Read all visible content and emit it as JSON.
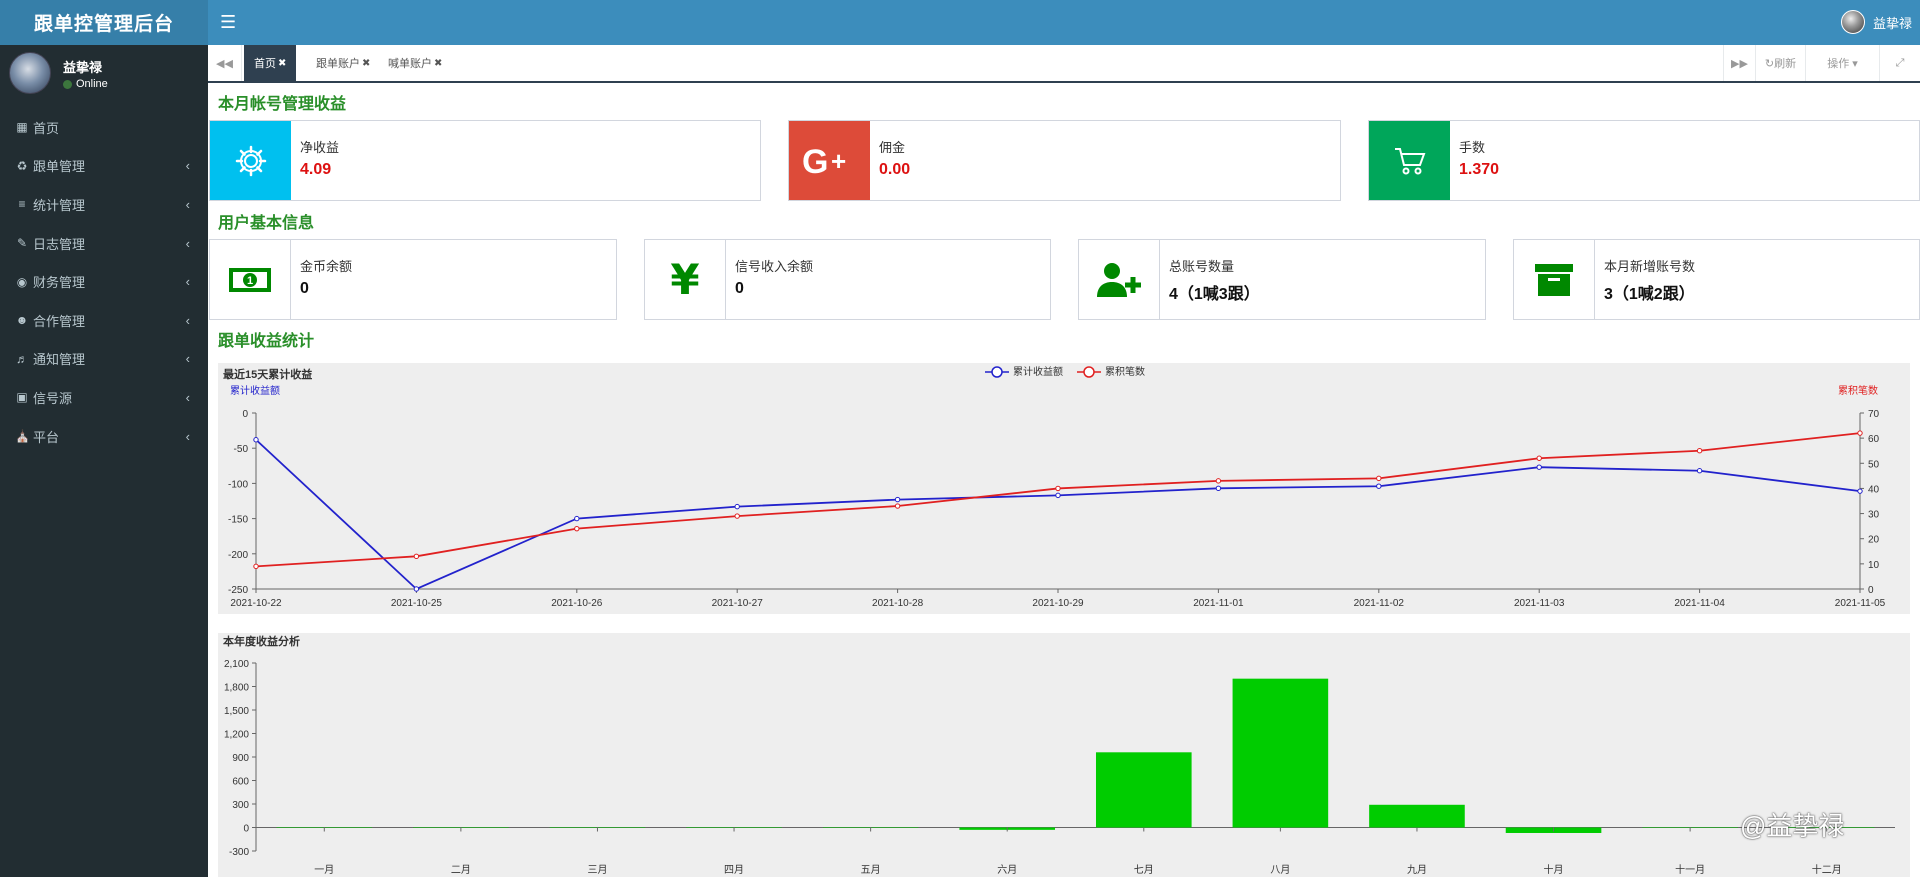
{
  "app": {
    "title": "跟单控管理后台"
  },
  "topbar": {
    "menu_icon": "hamburger-icon",
    "username": "益挚禄"
  },
  "sidebar": {
    "user": {
      "name": "益挚禄",
      "status": "Online"
    },
    "items": [
      {
        "label": "首页",
        "icon": "windows-icon"
      },
      {
        "label": "跟单管理",
        "icon": "recycle-icon"
      },
      {
        "label": "统计管理",
        "icon": "sliders-icon"
      },
      {
        "label": "日志管理",
        "icon": "edit-icon"
      },
      {
        "label": "财务管理",
        "icon": "money-icon"
      },
      {
        "label": "合作管理",
        "icon": "users-icon"
      },
      {
        "label": "通知管理",
        "icon": "volume-icon"
      },
      {
        "label": "信号源",
        "icon": "share-square-icon"
      },
      {
        "label": "平台",
        "icon": "bank-icon"
      }
    ]
  },
  "tabs": {
    "items": [
      {
        "label": "首页",
        "active": true
      },
      {
        "label": "跟单账户",
        "active": false
      },
      {
        "label": "喊单账户",
        "active": false
      }
    ],
    "refresh_label": "刷新",
    "ops_label": "操作"
  },
  "sections": {
    "monthly": "本月帐号管理收益",
    "userinfo": "用户基本信息",
    "stats": "跟单收益统计"
  },
  "monthly_boxes": [
    {
      "label": "净收益",
      "value": "4.09",
      "icon": "gear-icon",
      "color": "#00c0ef"
    },
    {
      "label": "佣金",
      "value": "0.00",
      "icon": "google-plus-icon",
      "color": "#dd4b39"
    },
    {
      "label": "手数",
      "value": "1.370",
      "icon": "shopping-cart-icon",
      "color": "#00a65a"
    }
  ],
  "user_boxes": [
    {
      "label": "金币余额",
      "value": "0",
      "icon": "money-bill-icon"
    },
    {
      "label": "信号收入余额",
      "value": "0",
      "icon": "yen-icon"
    },
    {
      "label": "总账号数量",
      "value": "4（1喊3跟）",
      "icon": "user-plus-icon"
    },
    {
      "label": "本月新增账号数",
      "value": "3（1喊2跟）",
      "icon": "archive-icon"
    }
  ],
  "watermark": "@益挚禄",
  "chart_data": [
    {
      "type": "line",
      "title": "最近15天累计收益",
      "x": [
        "2021-10-22",
        "2021-10-25",
        "2021-10-26",
        "2021-10-27",
        "2021-10-28",
        "2021-10-29",
        "2021-11-01",
        "2021-11-02",
        "2021-11-03",
        "2021-11-04",
        "2021-11-05"
      ],
      "series": [
        {
          "name": "累计收益额",
          "axis": "left",
          "color": "#2222cc",
          "values": [
            -38,
            -250,
            -150,
            -133,
            -123,
            -117,
            -107,
            -104,
            -77,
            -82,
            -111
          ]
        },
        {
          "name": "累积笔数",
          "axis": "right",
          "color": "#e02020",
          "values": [
            9,
            13,
            24,
            29,
            33,
            40,
            43,
            44,
            52,
            55,
            62
          ]
        }
      ],
      "ylabel": "累计收益额",
      "y2label": "累积笔数",
      "ylim": [
        -250,
        0
      ],
      "yticks": [
        0,
        -50,
        -100,
        -150,
        -200,
        -250
      ],
      "y2lim": [
        0,
        70
      ],
      "y2ticks": [
        70,
        60,
        50,
        40,
        30,
        20,
        10,
        0
      ],
      "legend": "top-center"
    },
    {
      "type": "bar",
      "title": "本年度收益分析",
      "categories": [
        "一月",
        "二月",
        "三月",
        "四月",
        "五月",
        "六月",
        "七月",
        "八月",
        "九月",
        "十月",
        "十一月",
        "十二月"
      ],
      "values": [
        0,
        0,
        0,
        0,
        0,
        -30,
        960,
        1900,
        290,
        -70,
        0,
        0
      ],
      "color": "#00cc00",
      "ylim": [
        -300,
        2100
      ],
      "yticks": [
        "2,100",
        "1,800",
        "1,500",
        "1,200",
        "900",
        "600",
        "300",
        "0",
        "-300"
      ]
    }
  ]
}
